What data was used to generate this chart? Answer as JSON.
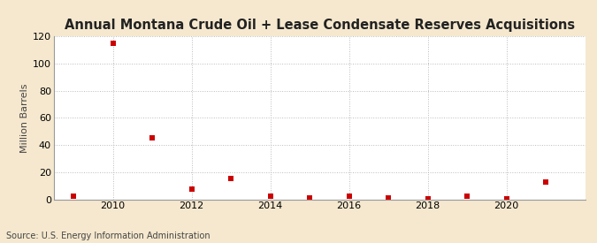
{
  "title": "Annual Montana Crude Oil + Lease Condensate Reserves Acquisitions",
  "ylabel": "Million Barrels",
  "source": "Source: U.S. Energy Information Administration",
  "background_color": "#f5e8ce",
  "plot_background_color": "#ffffff",
  "marker_color": "#cc0000",
  "marker_size": 4,
  "years": [
    2009,
    2010,
    2011,
    2012,
    2013,
    2014,
    2015,
    2016,
    2017,
    2018,
    2019,
    2020,
    2021
  ],
  "values": [
    2.0,
    115.0,
    45.0,
    7.5,
    15.0,
    2.0,
    0.8,
    2.0,
    0.8,
    0.5,
    2.0,
    0.3,
    13.0
  ],
  "ylim": [
    0,
    120
  ],
  "yticks": [
    0,
    20,
    40,
    60,
    80,
    100,
    120
  ],
  "xlim": [
    2008.5,
    2022.0
  ],
  "xticks": [
    2010,
    2012,
    2014,
    2016,
    2018,
    2020
  ],
  "grid_color": "#bbbbbb",
  "grid_linestyle": ":",
  "title_fontsize": 10.5,
  "label_fontsize": 8,
  "tick_fontsize": 8,
  "source_fontsize": 7
}
